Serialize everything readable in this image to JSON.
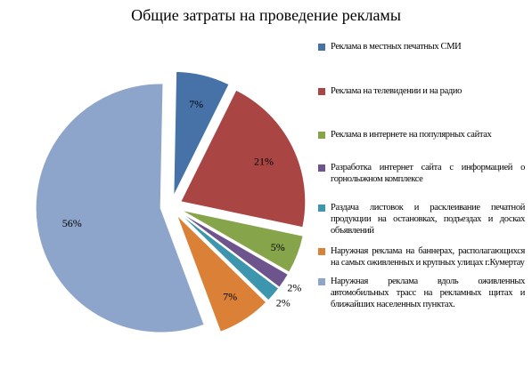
{
  "chart_data": {
    "type": "pie",
    "title": "Общие затраты на проведение рекламы",
    "categories": [
      "Реклама в местных печатных СМИ",
      "Реклама на телевидении и на радио",
      "Реклама в интернете на популярных сайтах",
      "Разработка интернет сайта с информацией о горнолыжном комплексе",
      "Раздача листовок и расклеивание печатной продукции на остановках, подъездах и досках объявлений",
      "Наружная реклама на баннерах, располагающихся на самых оживленных и крупных улицах г.Кумертау",
      "Наружная реклама вдоль оживленных автомобильных трасс на рекламных щитах и ближайших населенных пунктах."
    ],
    "values": [
      7,
      21,
      5,
      2,
      2,
      7,
      56
    ],
    "data_labels": [
      "7%",
      "21%",
      "5%",
      "2%",
      "2%",
      "7%",
      "56%"
    ],
    "colors": [
      "#4672A8",
      "#A94644",
      "#86A44A",
      "#6E548D",
      "#3D96AE",
      "#DA8137",
      "#8EA5CB"
    ],
    "legend_position": "right"
  }
}
